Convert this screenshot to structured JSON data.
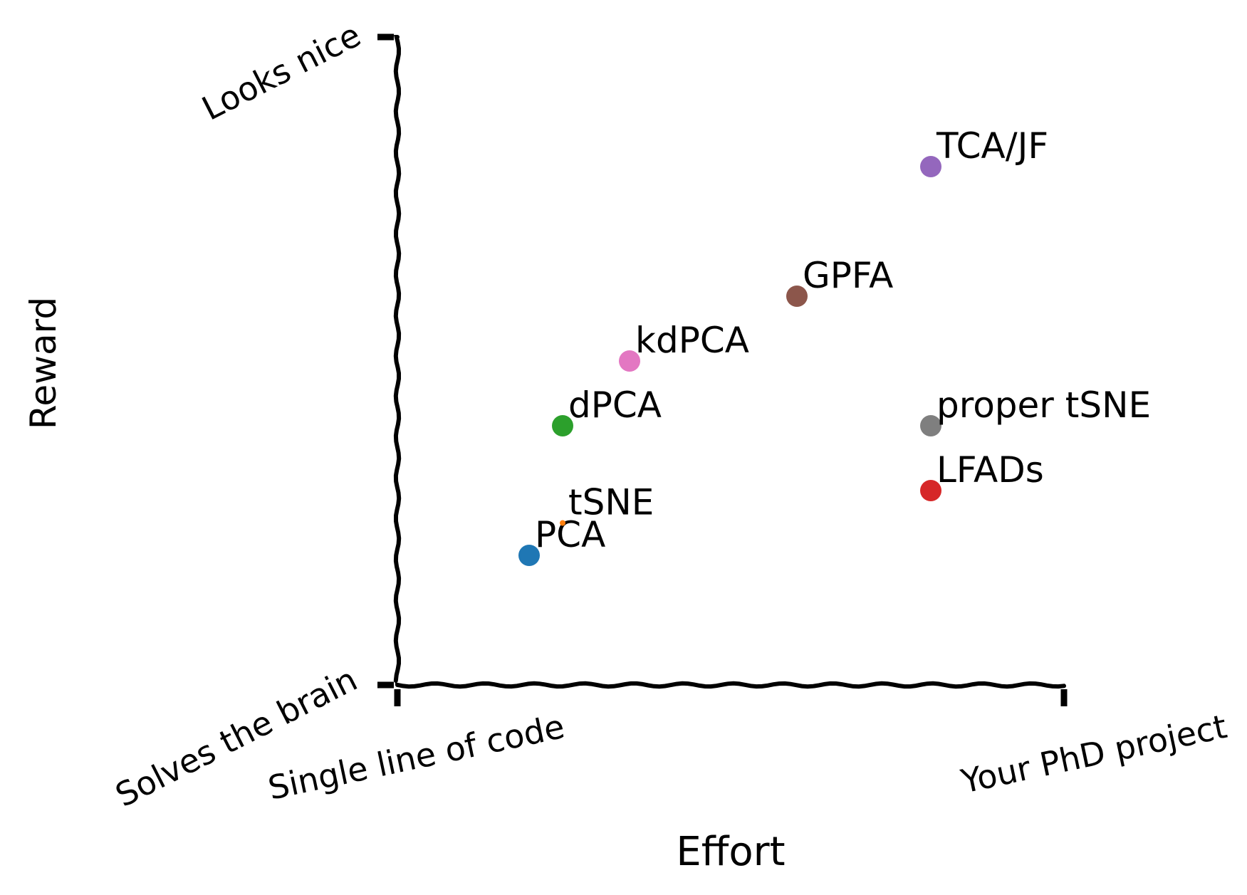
{
  "chart_data": {
    "type": "scatter",
    "title": "",
    "xlabel": "Effort",
    "ylabel": "Reward",
    "xlim": [
      0,
      10
    ],
    "ylim": [
      0,
      10
    ],
    "x_tick_labels": [
      {
        "value": 0,
        "label": "Single line of code"
      },
      {
        "value": 10,
        "label": "Your PhD project"
      }
    ],
    "y_tick_labels": [
      {
        "value": 0,
        "label": "Looks nice"
      },
      {
        "value": 10,
        "label": "Solves the brain"
      }
    ],
    "grid": false,
    "points": [
      {
        "label": "PCA",
        "x": 2.0,
        "y": 2.0,
        "color": "#1f77b4"
      },
      {
        "label": "tSNE",
        "x": 2.5,
        "y": 2.5,
        "color": "#ff7f0e"
      },
      {
        "label": "dPCA",
        "x": 2.5,
        "y": 4.0,
        "color": "#2ca02c"
      },
      {
        "label": "LFADs",
        "x": 8.0,
        "y": 3.0,
        "color": "#d62728"
      },
      {
        "label": "TCA/JF",
        "x": 8.0,
        "y": 8.0,
        "color": "#9467bd"
      },
      {
        "label": "GPFA",
        "x": 6.0,
        "y": 6.0,
        "color": "#8c564b"
      },
      {
        "label": "kdPCA",
        "x": 3.5,
        "y": 5.0,
        "color": "#e377c2"
      },
      {
        "label": "proper tSNE",
        "x": 8.0,
        "y": 4.0,
        "color": "#7f7f7f"
      }
    ]
  }
}
